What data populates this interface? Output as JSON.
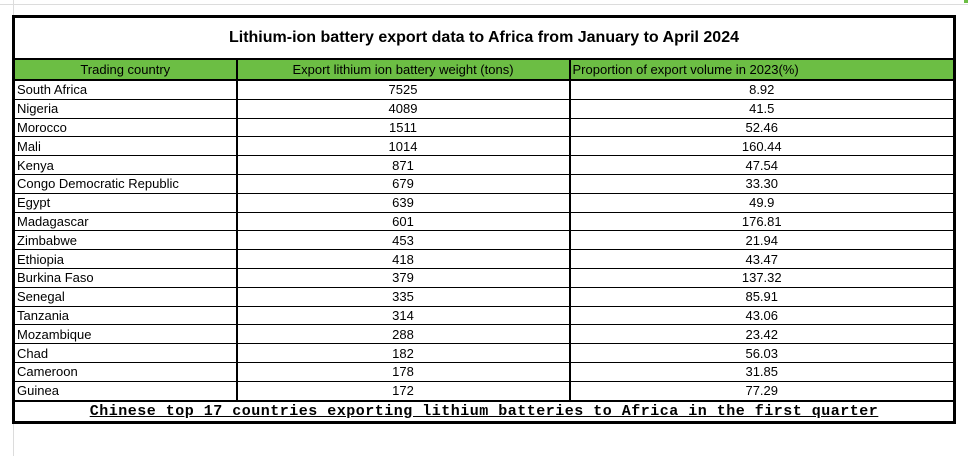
{
  "page": {
    "background": "#ffffff",
    "artifacts": {
      "gridline_color": "#dcdcdc",
      "adjacent_cell_fragment_color": "#6cbe44"
    }
  },
  "chart_data": {
    "type": "table",
    "title": "Lithium-ion battery export data to Africa from January to April 2024",
    "columns": [
      "Trading country",
      "Export lithium ion battery weight (tons)",
      "Proportion of export volume in 2023(%)"
    ],
    "rows": [
      {
        "country": "South Africa",
        "weight": "7525",
        "proportion": "8.92"
      },
      {
        "country": "Nigeria",
        "weight": "4089",
        "proportion": "41.5"
      },
      {
        "country": "Morocco",
        "weight": "1511",
        "proportion": "52.46"
      },
      {
        "country": "Mali",
        "weight": "1014",
        "proportion": "160.44"
      },
      {
        "country": "Kenya",
        "weight": "871",
        "proportion": "47.54"
      },
      {
        "country": "Congo Democratic Republic",
        "weight": "679",
        "proportion": "33.30"
      },
      {
        "country": "Egypt",
        "weight": "639",
        "proportion": "49.9"
      },
      {
        "country": "Madagascar",
        "weight": "601",
        "proportion": "176.81"
      },
      {
        "country": "Zimbabwe",
        "weight": "453",
        "proportion": "21.94"
      },
      {
        "country": "Ethiopia",
        "weight": "418",
        "proportion": "43.47"
      },
      {
        "country": "Burkina Faso",
        "weight": "379",
        "proportion": "137.32"
      },
      {
        "country": "Senegal",
        "weight": "335",
        "proportion": "85.91"
      },
      {
        "country": "Tanzania",
        "weight": "314",
        "proportion": "43.06"
      },
      {
        "country": "Mozambique",
        "weight": "288",
        "proportion": "23.42"
      },
      {
        "country": "Chad",
        "weight": "182",
        "proportion": "56.03"
      },
      {
        "country": "Cameroon",
        "weight": "178",
        "proportion": "31.85"
      },
      {
        "country": "Guinea",
        "weight": "172",
        "proportion": "77.29"
      }
    ],
    "footnote": "Chinese top 17 countries exporting lithium batteries to Africa in the first quarter",
    "header_bg": "#6cbe44",
    "border_color": "#000000",
    "legend_position": "none",
    "grid": "table-borders"
  }
}
